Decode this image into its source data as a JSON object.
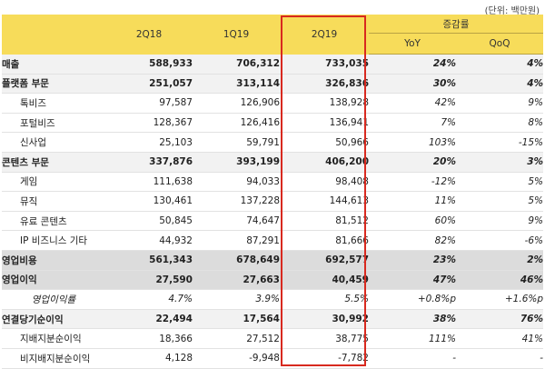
{
  "unit_note": "(단위: 백만원)",
  "header": {
    "periods": [
      "2Q18",
      "1Q19",
      "2Q19"
    ],
    "change_group": "증감률",
    "change_cols": [
      "YoY",
      "QoQ"
    ]
  },
  "rows": [
    {
      "label": "매출",
      "style": "bold",
      "v": [
        "588,933",
        "706,312",
        "733,035"
      ],
      "c": [
        "24%",
        "4%"
      ]
    },
    {
      "label": "플랫폼 부문",
      "style": "bold",
      "v": [
        "251,057",
        "313,114",
        "326,836"
      ],
      "c": [
        "30%",
        "4%"
      ]
    },
    {
      "label": "톡비즈",
      "style": "sub",
      "v": [
        "97,587",
        "126,906",
        "138,928"
      ],
      "c": [
        "42%",
        "9%"
      ]
    },
    {
      "label": "포털비즈",
      "style": "sub",
      "v": [
        "128,367",
        "126,416",
        "136,941"
      ],
      "c": [
        "7%",
        "8%"
      ]
    },
    {
      "label": "신사업",
      "style": "sub",
      "v": [
        "25,103",
        "59,791",
        "50,966"
      ],
      "c": [
        "103%",
        "-15%"
      ]
    },
    {
      "label": "콘텐츠 부문",
      "style": "bold",
      "v": [
        "337,876",
        "393,199",
        "406,200"
      ],
      "c": [
        "20%",
        "3%"
      ]
    },
    {
      "label": "게임",
      "style": "sub",
      "v": [
        "111,638",
        "94,033",
        "98,408"
      ],
      "c": [
        "-12%",
        "5%"
      ]
    },
    {
      "label": "뮤직",
      "style": "sub",
      "v": [
        "130,461",
        "137,228",
        "144,613"
      ],
      "c": [
        "11%",
        "5%"
      ]
    },
    {
      "label": "유료 콘텐츠",
      "style": "sub",
      "v": [
        "50,845",
        "74,647",
        "81,512"
      ],
      "c": [
        "60%",
        "9%"
      ]
    },
    {
      "label": "IP 비즈니스 기타",
      "style": "sub",
      "v": [
        "44,932",
        "87,291",
        "81,666"
      ],
      "c": [
        "82%",
        "-6%"
      ]
    },
    {
      "label": "영업비용",
      "style": "grey",
      "v": [
        "561,343",
        "678,649",
        "692,577"
      ],
      "c": [
        "23%",
        "2%"
      ]
    },
    {
      "label": "영업이익",
      "style": "grey",
      "v": [
        "27,590",
        "27,663",
        "40,459"
      ],
      "c": [
        "47%",
        "46%"
      ]
    },
    {
      "label": "영업이익률",
      "style": "italic",
      "v": [
        "4.7%",
        "3.9%",
        "5.5%"
      ],
      "c": [
        "+0.8%p",
        "+1.6%p"
      ]
    },
    {
      "label": "연결당기순이익",
      "style": "bold",
      "v": [
        "22,494",
        "17,564",
        "30,992"
      ],
      "c": [
        "38%",
        "76%"
      ]
    },
    {
      "label": "지배지분순이익",
      "style": "sub",
      "v": [
        "18,366",
        "27,512",
        "38,775"
      ],
      "c": [
        "111%",
        "41%"
      ]
    },
    {
      "label": "비지배지분순이익",
      "style": "sub",
      "v": [
        "4,128",
        "-9,948",
        "-7,782"
      ],
      "c": [
        "-",
        "-"
      ]
    }
  ]
}
